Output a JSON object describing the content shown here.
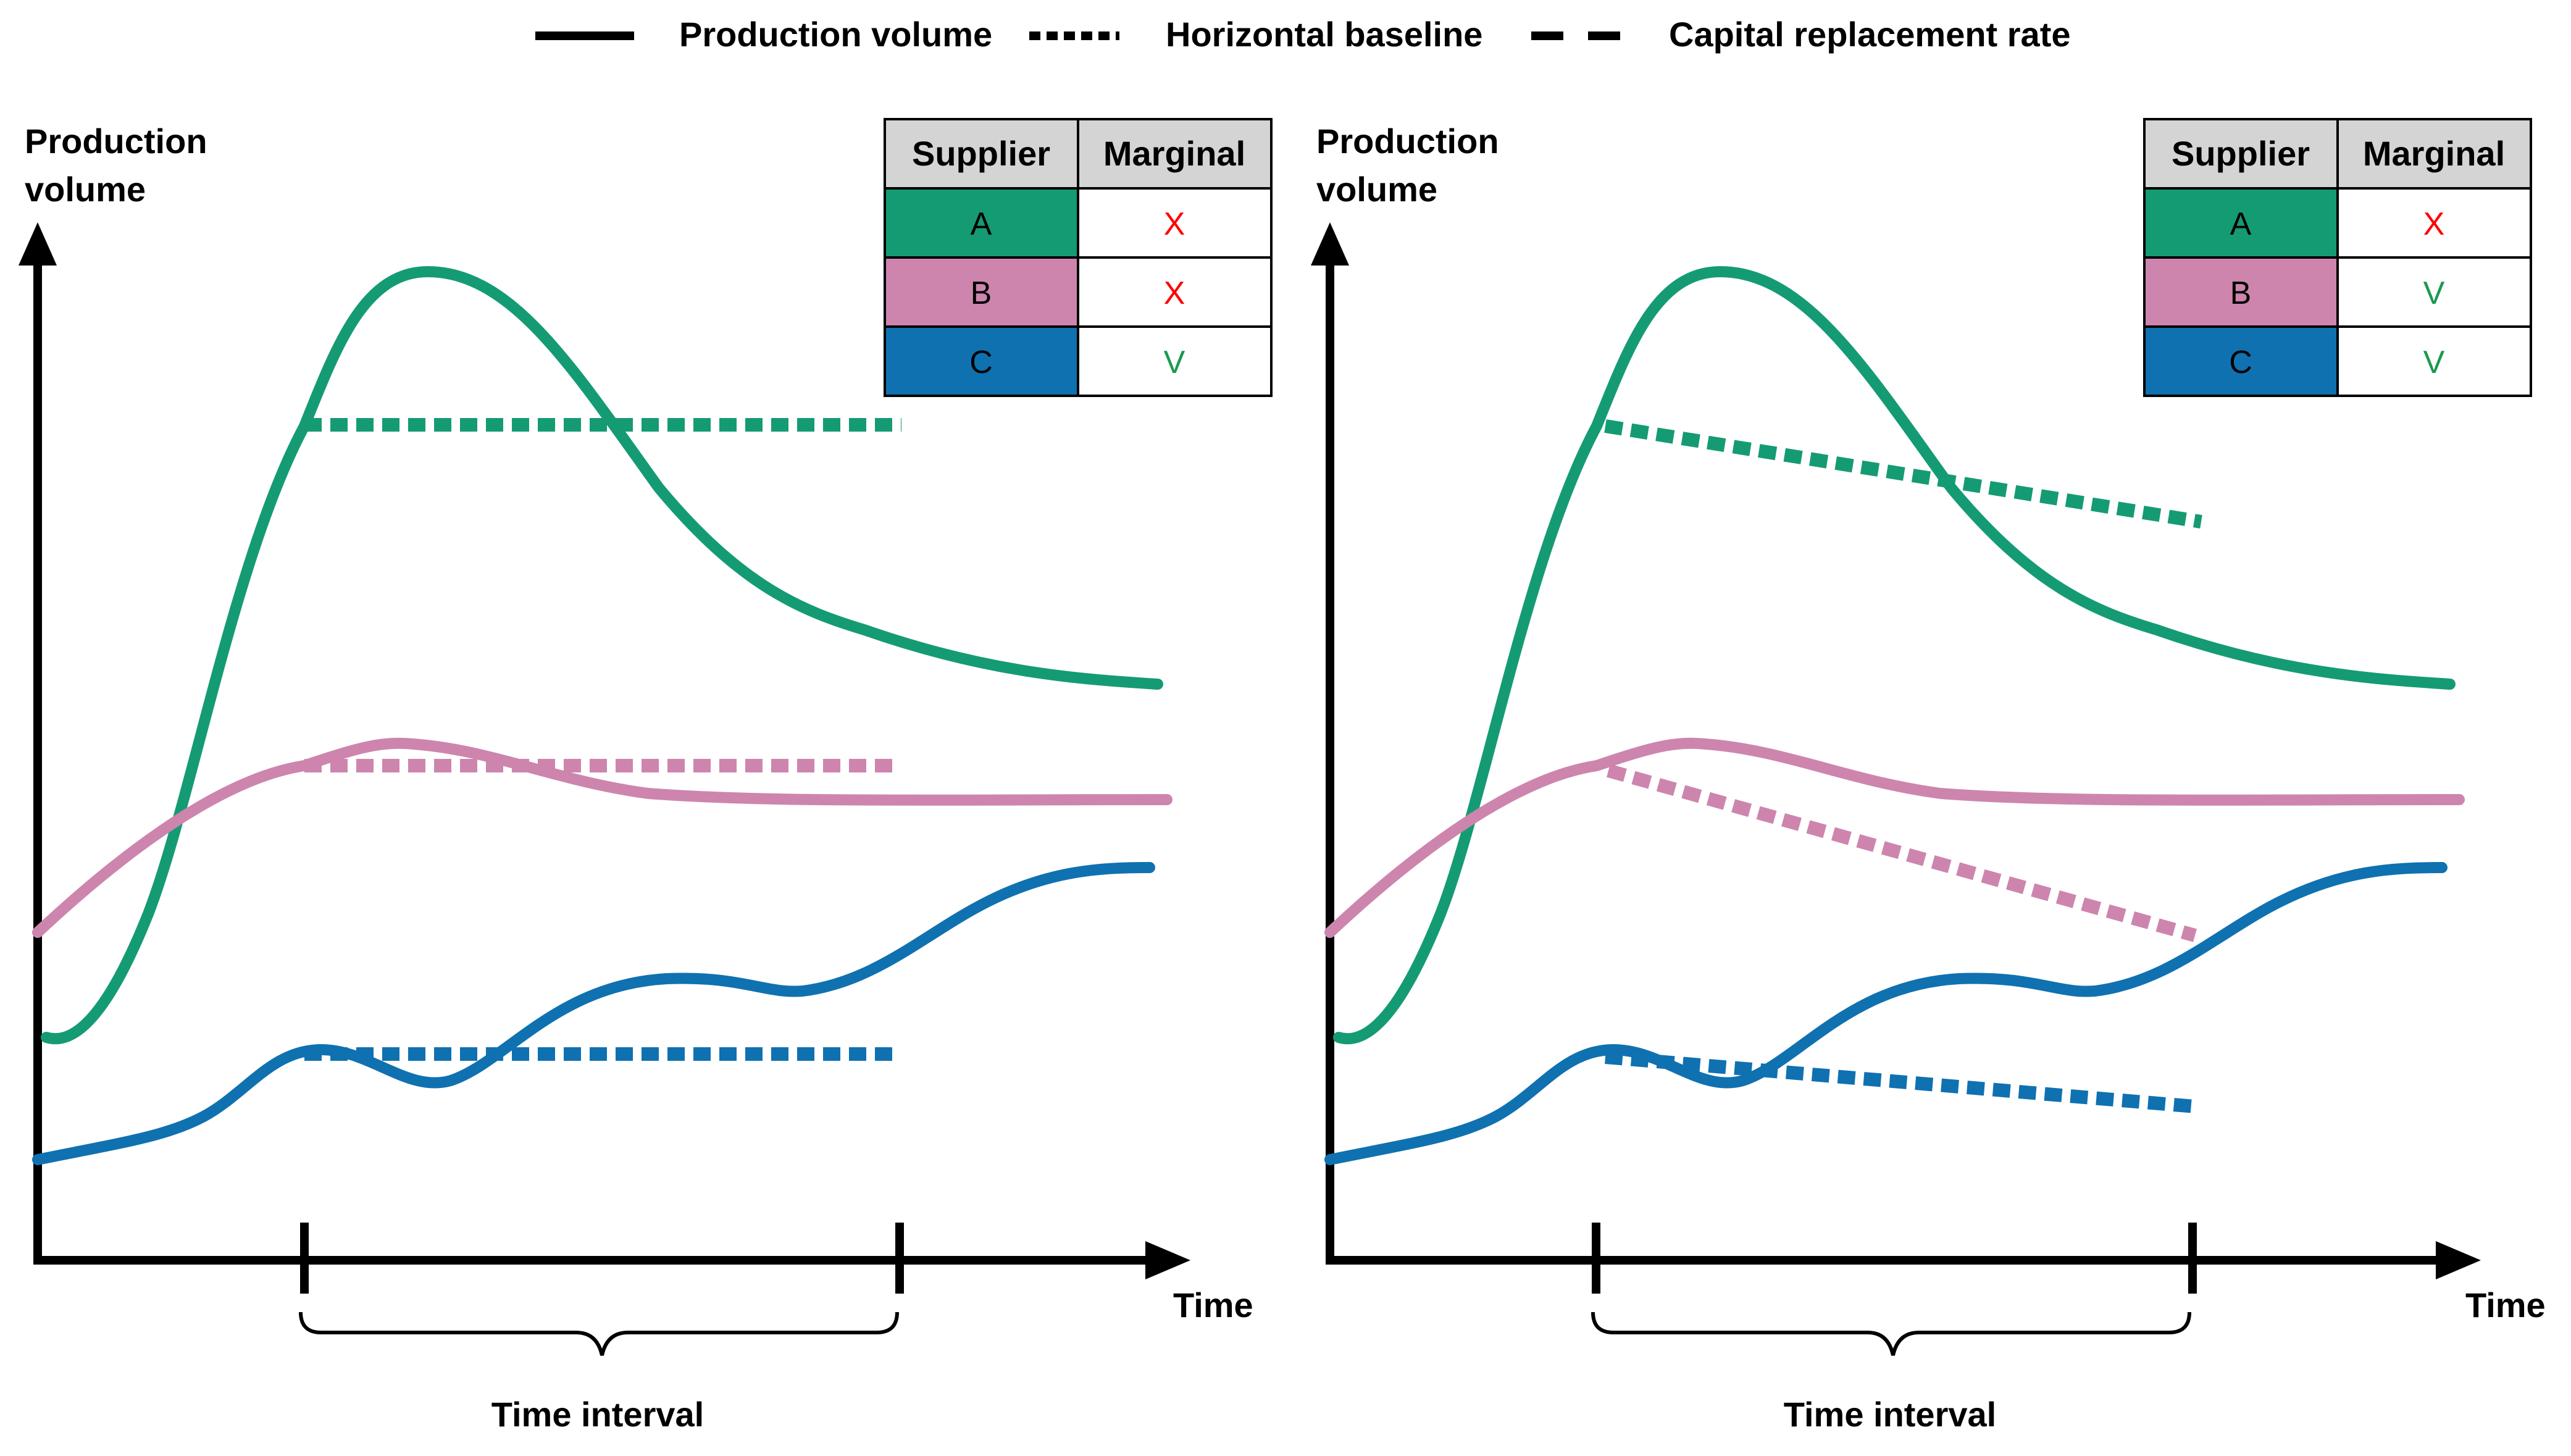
{
  "legend": {
    "production_volume": "Production volume",
    "horizontal_baseline": "Horizontal baseline",
    "capital_replacement_rate": "Capital replacement rate"
  },
  "colors": {
    "A": "#159b73",
    "B": "#cd85ae",
    "C": "#0f71b0",
    "check": "#1a9a50",
    "cross": "#ff0000",
    "header": "#d4d4d4"
  },
  "panels": [
    {
      "y_axis_label": [
        "Production",
        "volume"
      ],
      "x_axis_label": "Time",
      "interval_label": "Time interval",
      "table": {
        "headers": [
          "Supplier",
          "Marginal"
        ],
        "rows": [
          {
            "supplier": "A",
            "marginal": "X"
          },
          {
            "supplier": "B",
            "marginal": "X"
          },
          {
            "supplier": "C",
            "marginal": "V"
          }
        ]
      }
    },
    {
      "y_axis_label": [
        "Production",
        "volume"
      ],
      "x_axis_label": "Time",
      "interval_label": "Time interval",
      "table": {
        "headers": [
          "Supplier",
          "Marginal"
        ],
        "rows": [
          {
            "supplier": "A",
            "marginal": "X"
          },
          {
            "supplier": "B",
            "marginal": "V"
          },
          {
            "supplier": "C",
            "marginal": "V"
          }
        ]
      }
    }
  ]
}
